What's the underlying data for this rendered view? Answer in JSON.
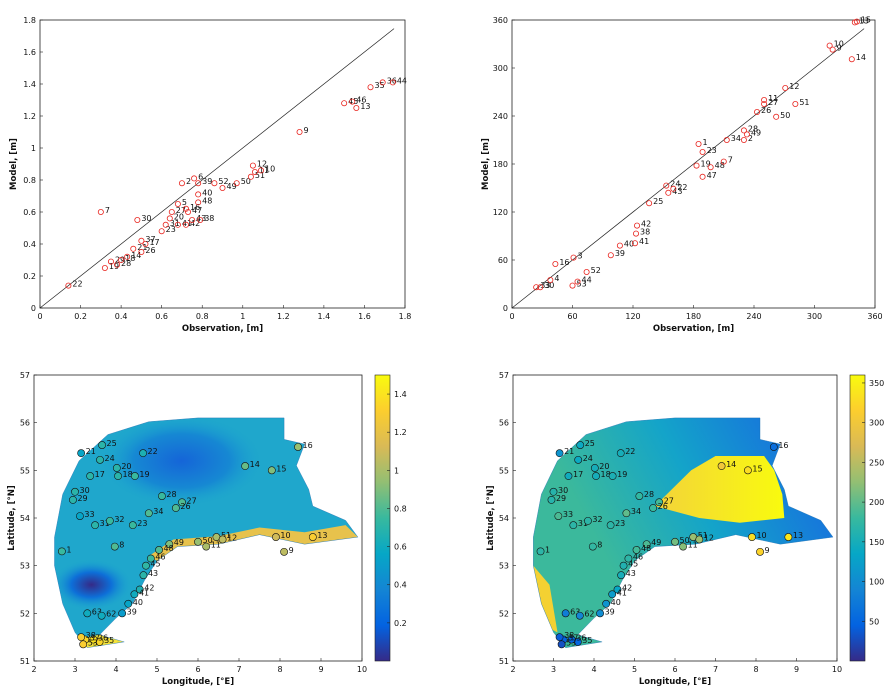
{
  "chart_data": [
    {
      "type": "scatter",
      "xlabel": "Observation, [m]",
      "ylabel": "Model, [m]",
      "xlim": [
        0,
        1.8
      ],
      "ylim": [
        0,
        1.8
      ],
      "xticks": [
        0,
        0.2,
        0.4,
        0.6,
        0.8,
        1,
        1.2,
        1.4,
        1.6,
        1.8
      ],
      "yticks": [
        0,
        0.2,
        0.4,
        0.6,
        0.8,
        1,
        1.2,
        1.4,
        1.6,
        1.8
      ],
      "color": "#e8251f",
      "labels": [
        "22",
        "7",
        "19",
        "28",
        "29",
        "18",
        "14",
        "21",
        "26",
        "17",
        "37",
        "30",
        "23",
        "31",
        "20",
        "27",
        "41",
        "5",
        "16",
        "42",
        "47",
        "43",
        "48",
        "38",
        "2",
        "6",
        "39",
        "40",
        "52",
        "49",
        "50",
        "51",
        "11",
        "12",
        "10",
        "9",
        "45",
        "46",
        "13",
        "35",
        "36",
        "44"
      ],
      "x": [
        0.14,
        0.3,
        0.32,
        0.38,
        0.35,
        0.4,
        0.43,
        0.46,
        0.5,
        0.52,
        0.5,
        0.48,
        0.6,
        0.62,
        0.64,
        0.65,
        0.68,
        0.68,
        0.72,
        0.72,
        0.73,
        0.75,
        0.78,
        0.79,
        0.7,
        0.76,
        0.78,
        0.78,
        0.86,
        0.9,
        0.97,
        1.04,
        1.06,
        1.05,
        1.09,
        1.28,
        1.5,
        1.54,
        1.56,
        1.63,
        1.69,
        1.74
      ],
      "y": [
        0.14,
        0.6,
        0.25,
        0.27,
        0.29,
        0.3,
        0.32,
        0.37,
        0.35,
        0.4,
        0.42,
        0.55,
        0.48,
        0.52,
        0.56,
        0.6,
        0.52,
        0.65,
        0.62,
        0.52,
        0.6,
        0.55,
        0.66,
        0.55,
        0.78,
        0.81,
        0.78,
        0.71,
        0.78,
        0.75,
        0.78,
        0.82,
        0.85,
        0.89,
        0.86,
        1.1,
        1.28,
        1.29,
        1.25,
        1.38,
        1.41,
        1.41
      ]
    },
    {
      "type": "scatter",
      "xlabel": "Observation, [m]",
      "ylabel": "Model, [m]",
      "xlim": [
        0,
        360
      ],
      "ylim": [
        0,
        360
      ],
      "xticks": [
        0,
        60,
        120,
        180,
        240,
        300,
        360
      ],
      "yticks": [
        0,
        60,
        120,
        180,
        240,
        300,
        360
      ],
      "color": "#e8251f",
      "labels": [
        "33",
        "30",
        "4",
        "16",
        "53",
        "44",
        "3",
        "52",
        "39",
        "40",
        "41",
        "38",
        "42",
        "25",
        "43",
        "24",
        "22",
        "19",
        "47",
        "48",
        "1",
        "23",
        "7",
        "34",
        "2",
        "49",
        "28",
        "26",
        "27",
        "11",
        "50",
        "51",
        "12",
        "14",
        "9",
        "10",
        "13",
        "15"
      ],
      "x": [
        24,
        28,
        38,
        43,
        60,
        65,
        61,
        74,
        98,
        107,
        122,
        123,
        124,
        136,
        155,
        153,
        160,
        183,
        189,
        197,
        185,
        189,
        210,
        213,
        230,
        233,
        230,
        243,
        250,
        250,
        262,
        281,
        271,
        337,
        318,
        315,
        340,
        342
      ],
      "y": [
        26,
        26,
        35,
        55,
        28,
        33,
        63,
        45,
        66,
        78,
        81,
        93,
        103,
        131,
        144,
        153,
        149,
        178,
        164,
        176,
        205,
        195,
        183,
        210,
        210,
        217,
        222,
        245,
        255,
        260,
        239,
        255,
        275,
        311,
        323,
        328,
        357,
        358
      ]
    },
    {
      "type": "map",
      "xlabel": "Longitude, [°E]",
      "ylabel": "Latitude, [°N]",
      "xlim": [
        2,
        10
      ],
      "ylim": [
        51,
        57
      ],
      "xticks": [
        2,
        3,
        4,
        5,
        6,
        7,
        8,
        9,
        10
      ],
      "yticks": [
        51,
        52,
        53,
        54,
        55,
        56,
        57
      ],
      "clim": [
        0,
        1.5
      ],
      "cticks": [
        0.2,
        0.4,
        0.6,
        0.8,
        1,
        1.2,
        1.4
      ],
      "colormap": "parula",
      "labels": [
        "21",
        "25",
        "22",
        "24",
        "20",
        "17",
        "18",
        "19",
        "30",
        "29",
        "28",
        "27",
        "26",
        "14",
        "15",
        "16",
        "33",
        "31",
        "32",
        "23",
        "34",
        "10",
        "9",
        "13",
        "8",
        "50",
        "51",
        "12",
        "11",
        "49",
        "48",
        "46",
        "45",
        "43",
        "42",
        "41",
        "40",
        "39",
        "63",
        "62",
        "1",
        "35",
        "36",
        "37",
        "38",
        "53"
      ],
      "x": [
        3.15,
        3.66,
        4.66,
        3.61,
        4.02,
        3.37,
        4.05,
        4.46,
        3.0,
        2.95,
        5.12,
        5.61,
        5.46,
        7.15,
        7.8,
        8.44,
        3.12,
        3.49,
        3.85,
        4.41,
        4.8,
        7.9,
        8.1,
        8.8,
        3.97,
        6.0,
        6.45,
        6.6,
        6.2,
        5.3,
        5.05,
        4.85,
        4.73,
        4.67,
        4.58,
        4.45,
        4.3,
        4.15,
        3.3,
        3.65,
        2.68,
        3.6,
        3.45,
        3.25,
        3.15,
        3.2
      ],
      "y": [
        55.36,
        55.53,
        55.36,
        55.22,
        55.05,
        54.88,
        54.88,
        54.88,
        54.55,
        54.38,
        54.46,
        54.33,
        54.21,
        55.09,
        55.0,
        55.49,
        54.04,
        53.85,
        53.94,
        53.85,
        54.1,
        53.6,
        53.29,
        53.6,
        53.4,
        53.5,
        53.6,
        53.55,
        53.4,
        53.45,
        53.33,
        53.15,
        53.0,
        52.8,
        52.5,
        52.4,
        52.2,
        52.0,
        52.0,
        51.95,
        53.3,
        51.4,
        51.45,
        51.45,
        51.5,
        51.35
      ],
      "values": [
        0.55,
        0.7,
        0.65,
        0.7,
        0.7,
        0.7,
        0.7,
        0.75,
        0.7,
        0.7,
        0.75,
        0.8,
        0.8,
        0.85,
        0.9,
        0.95,
        0.55,
        0.7,
        0.75,
        0.75,
        0.8,
        1.1,
        1.05,
        1.3,
        0.8,
        0.95,
        1.0,
        1.05,
        1.0,
        0.9,
        0.8,
        0.75,
        0.72,
        0.7,
        0.65,
        0.6,
        0.55,
        0.5,
        0.6,
        0.6,
        0.75,
        1.35,
        1.4,
        1.35,
        1.3,
        1.3
      ]
    },
    {
      "type": "map",
      "xlabel": "Longitude, [°E]",
      "ylabel": "Latitude, [°N]",
      "xlim": [
        2,
        10
      ],
      "ylim": [
        51,
        57
      ],
      "xticks": [
        2,
        3,
        4,
        5,
        6,
        7,
        8,
        9,
        10
      ],
      "yticks": [
        51,
        52,
        53,
        54,
        55,
        56,
        57
      ],
      "clim": [
        0,
        360
      ],
      "cticks": [
        50,
        100,
        150,
        200,
        250,
        300,
        350
      ],
      "colormap": "parula",
      "labels": [
        "21",
        "25",
        "22",
        "24",
        "20",
        "17",
        "18",
        "19",
        "30",
        "29",
        "28",
        "27",
        "26",
        "14",
        "15",
        "16",
        "33",
        "31",
        "32",
        "23",
        "34",
        "10",
        "9",
        "13",
        "8",
        "50",
        "51",
        "12",
        "11",
        "49",
        "48",
        "46",
        "45",
        "43",
        "42",
        "41",
        "40",
        "39",
        "63",
        "62",
        "1",
        "35",
        "36",
        "37",
        "38",
        "53"
      ],
      "x": [
        3.15,
        3.66,
        4.66,
        3.61,
        4.02,
        3.37,
        4.05,
        4.46,
        3.0,
        2.95,
        5.12,
        5.61,
        5.46,
        7.15,
        7.8,
        8.44,
        3.12,
        3.49,
        3.85,
        4.41,
        4.8,
        7.9,
        8.1,
        8.8,
        3.97,
        6.0,
        6.45,
        6.6,
        6.2,
        5.3,
        5.05,
        4.85,
        4.73,
        4.67,
        4.58,
        4.45,
        4.3,
        4.15,
        3.3,
        3.65,
        2.68,
        3.6,
        3.45,
        3.25,
        3.15,
        3.2
      ],
      "y": [
        55.36,
        55.53,
        55.36,
        55.22,
        55.05,
        54.88,
        54.88,
        54.88,
        54.55,
        54.38,
        54.46,
        54.33,
        54.21,
        55.09,
        55.0,
        55.49,
        54.04,
        53.85,
        53.94,
        53.85,
        54.1,
        53.6,
        53.29,
        53.6,
        53.4,
        53.5,
        53.6,
        53.55,
        53.4,
        53.45,
        53.33,
        53.15,
        53.0,
        52.8,
        52.5,
        52.4,
        52.2,
        52.0,
        52.0,
        51.95,
        53.3,
        51.4,
        51.45,
        51.45,
        51.5,
        51.35
      ],
      "values": [
        110,
        140,
        150,
        140,
        150,
        145,
        150,
        155,
        165,
        165,
        175,
        185,
        180,
        300,
        330,
        60,
        190,
        170,
        170,
        170,
        200,
        330,
        320,
        340,
        175,
        210,
        230,
        230,
        220,
        190,
        185,
        170,
        160,
        150,
        135,
        120,
        110,
        100,
        80,
        90,
        170,
        50,
        50,
        45,
        40,
        30
      ]
    }
  ]
}
